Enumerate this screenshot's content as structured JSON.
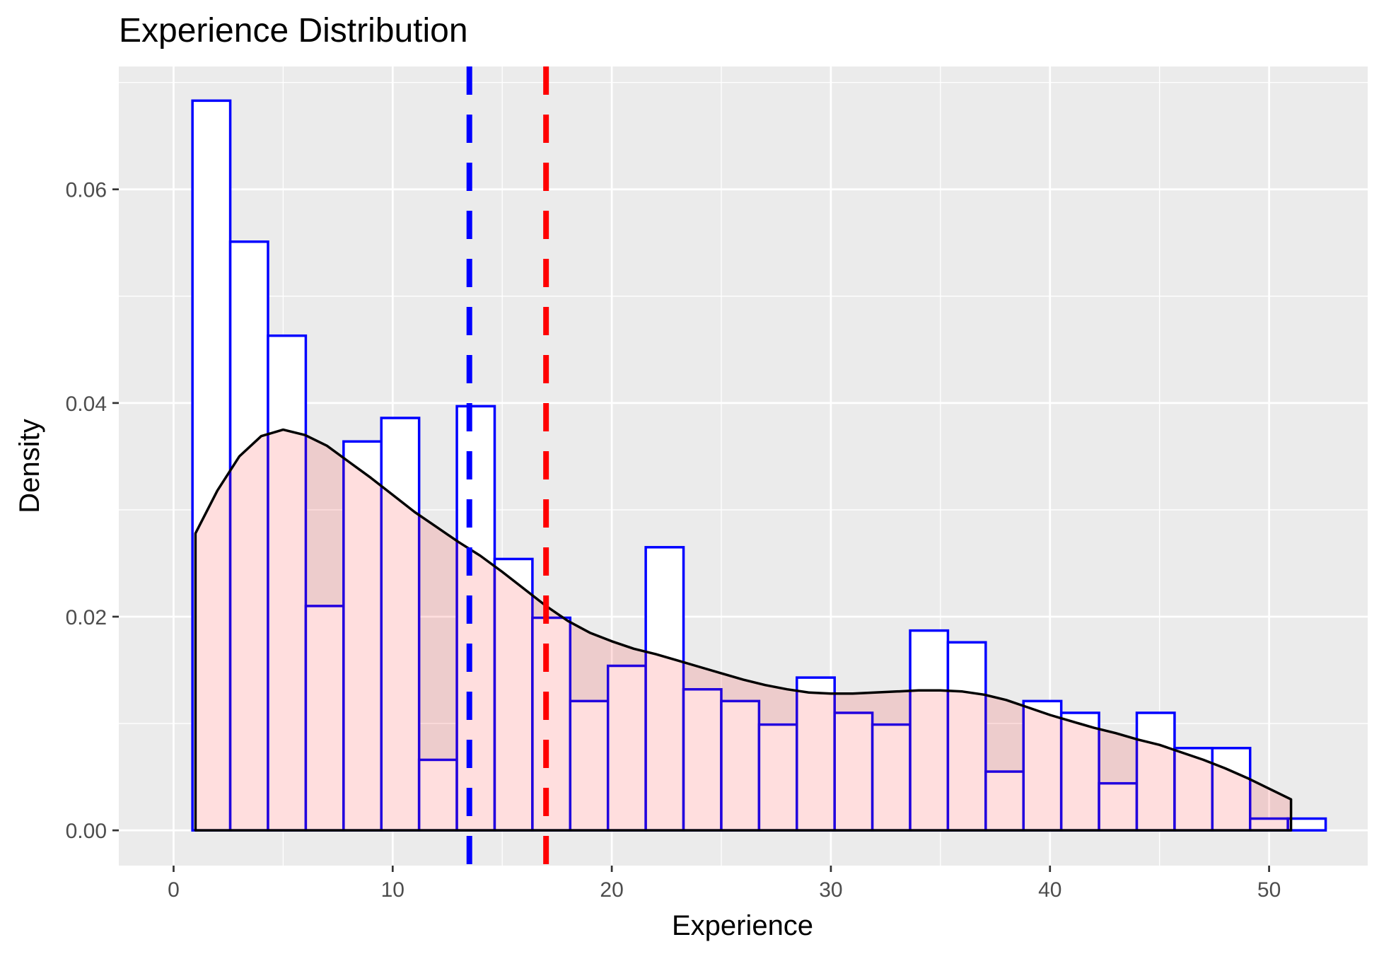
{
  "chart_data": {
    "type": "bar",
    "title": "Experience Distribution",
    "xlabel": "Experience",
    "ylabel": "Density",
    "xlim": [
      -2.5,
      54.5
    ],
    "ylim": [
      -0.0033,
      0.0715
    ],
    "x_ticks": [
      0,
      10,
      20,
      30,
      40,
      50
    ],
    "x_tick_labels": [
      "0",
      "10",
      "20",
      "30",
      "40",
      "50"
    ],
    "y_ticks": [
      0,
      0.02,
      0.04,
      0.06
    ],
    "y_tick_labels": [
      "0.00",
      "0.02",
      "0.04",
      "0.06"
    ],
    "grid": true,
    "legend": "none",
    "histogram": {
      "bin_width": 1.724,
      "bin_start": 0.862,
      "density": [
        0.0683,
        0.0551,
        0.0463,
        0.021,
        0.0364,
        0.0386,
        0.0066,
        0.0397,
        0.0254,
        0.0199,
        0.0121,
        0.0154,
        0.0265,
        0.0132,
        0.0121,
        0.0099,
        0.0143,
        0.011,
        0.0099,
        0.0187,
        0.0176,
        0.0055,
        0.0121,
        0.011,
        0.0044,
        0.011,
        0.0077,
        0.0077,
        0.0011,
        0.0011
      ],
      "outline_color": "#0000ff",
      "fill_color": "#ffffff"
    },
    "density_curve": {
      "x": [
        1.0,
        2.0,
        3.0,
        4.0,
        5.0,
        6.0,
        7.0,
        8.0,
        9.0,
        10.0,
        11.0,
        12.0,
        13.0,
        14.0,
        15.0,
        16.0,
        17.0,
        18.0,
        19.0,
        20.0,
        21.0,
        22.0,
        23.0,
        24.0,
        25.0,
        26.0,
        27.0,
        28.0,
        29.0,
        30.0,
        31.0,
        32.0,
        33.0,
        34.0,
        35.0,
        36.0,
        37.0,
        38.0,
        39.0,
        40.0,
        41.0,
        42.0,
        43.0,
        44.0,
        45.0,
        46.0,
        47.0,
        48.0,
        49.0,
        50.0,
        51.0
      ],
      "y": [
        0.0278,
        0.0318,
        0.035,
        0.0369,
        0.0375,
        0.037,
        0.036,
        0.0345,
        0.033,
        0.0314,
        0.0298,
        0.0284,
        0.027,
        0.0257,
        0.0242,
        0.0226,
        0.021,
        0.0196,
        0.0185,
        0.0177,
        0.017,
        0.0165,
        0.0159,
        0.0153,
        0.0147,
        0.0141,
        0.0136,
        0.0132,
        0.0129,
        0.0128,
        0.0128,
        0.0129,
        0.013,
        0.0131,
        0.0131,
        0.013,
        0.0127,
        0.0122,
        0.0115,
        0.0108,
        0.0102,
        0.0096,
        0.0091,
        0.0085,
        0.008,
        0.0073,
        0.0066,
        0.0058,
        0.0049,
        0.0039,
        0.0029
      ],
      "line_color": "#000000",
      "fill_color": "#ff0000",
      "fill_opacity": 0.13
    },
    "reference_lines": [
      {
        "x": 13.5,
        "color": "#0000ff",
        "style": "dashed"
      },
      {
        "x": 17.0,
        "color": "#ff0000",
        "style": "dashed"
      }
    ],
    "panel_color": "#ebebeb",
    "grid_color": "#ffffff"
  }
}
